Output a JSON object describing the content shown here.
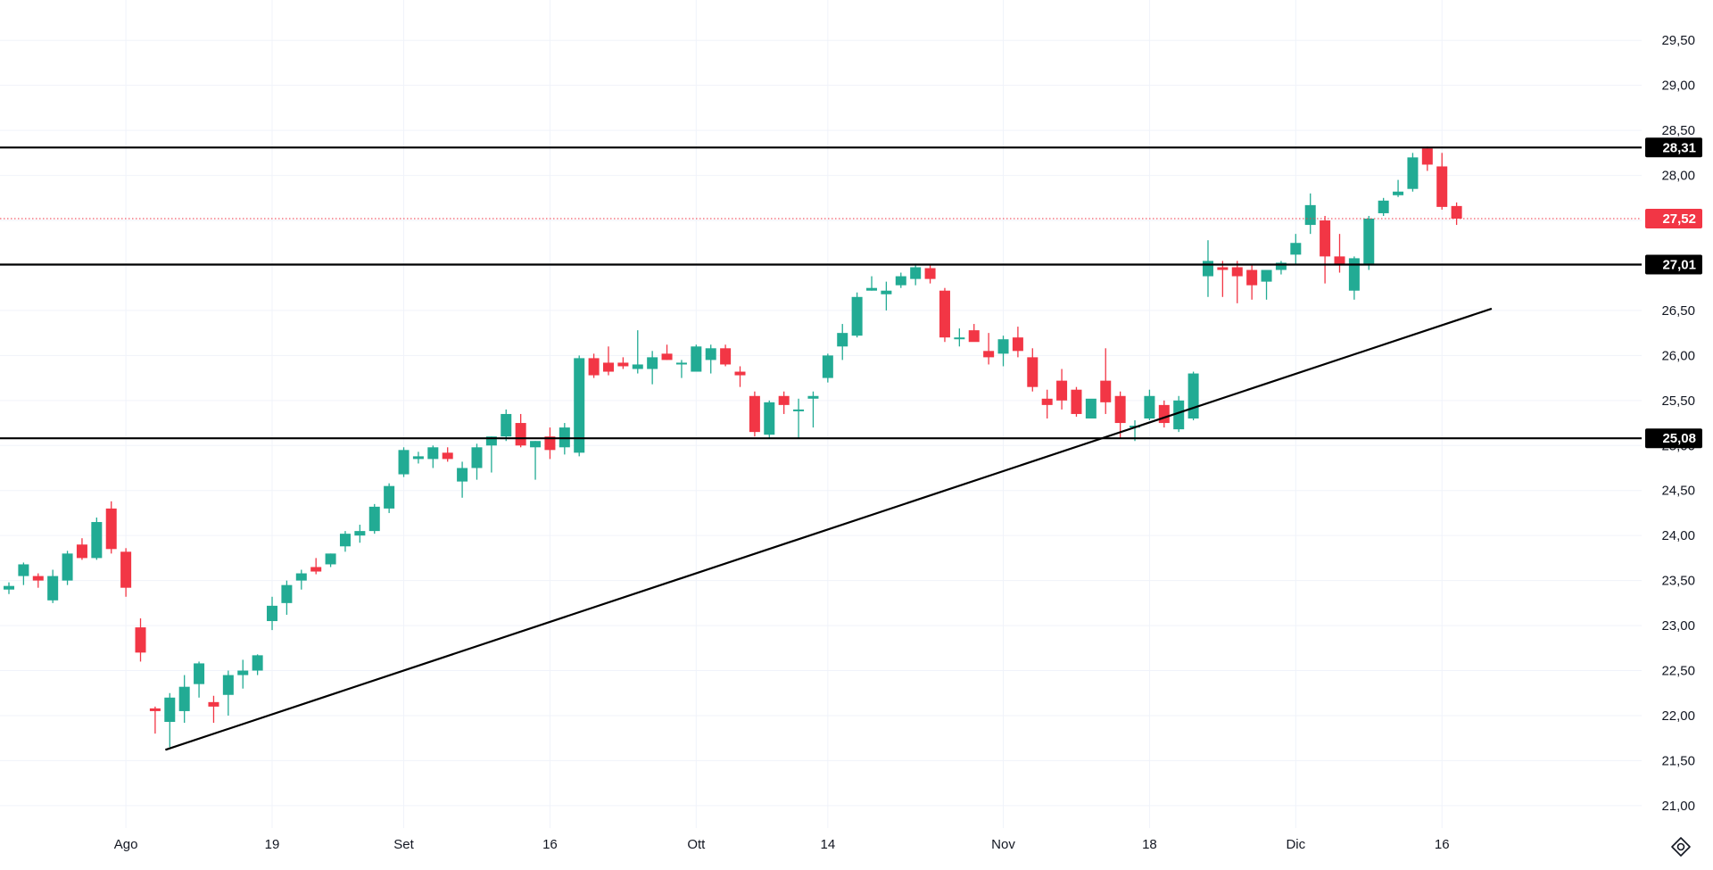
{
  "chart_data": {
    "type": "candlestick",
    "colors": {
      "up": "#22ab94",
      "down": "#f23645",
      "grid": "#f0f3fa",
      "level_line": "#000000",
      "current_price": "#f23645"
    },
    "ylim": [
      20.85,
      29.75
    ],
    "y_ticks": [
      "21,00",
      "21,50",
      "22,00",
      "22,50",
      "23,00",
      "23,50",
      "24,00",
      "24,50",
      "25,00",
      "25,50",
      "26,00",
      "26,50",
      "27,00",
      "27,50",
      "28,00",
      "28,50",
      "29,00",
      "29,50"
    ],
    "x_ticks": [
      {
        "label": "Ago",
        "index": 8
      },
      {
        "label": "19",
        "index": 18
      },
      {
        "label": "Set",
        "index": 27
      },
      {
        "label": "16",
        "index": 37
      },
      {
        "label": "Ott",
        "index": 47
      },
      {
        "label": "14",
        "index": 56
      },
      {
        "label": "Nov",
        "index": 68
      },
      {
        "label": "18",
        "index": 78
      },
      {
        "label": "Dic",
        "index": 88
      },
      {
        "label": "16",
        "index": 98
      }
    ],
    "horizontal_levels": [
      {
        "label": "28,31",
        "value": 28.31
      },
      {
        "label": "27,01",
        "value": 27.01
      },
      {
        "label": "25,08",
        "value": 25.08
      }
    ],
    "current_price": {
      "label": "27,52",
      "value": 27.52
    },
    "trendline": [
      {
        "index": 10.7,
        "value": 21.62
      },
      {
        "index": 101.4,
        "value": 26.52
      }
    ],
    "candles": [
      [
        23.4,
        23.48,
        23.35,
        23.44
      ],
      [
        23.55,
        23.7,
        23.45,
        23.68
      ],
      [
        23.55,
        23.58,
        23.42,
        23.5
      ],
      [
        23.28,
        23.62,
        23.25,
        23.55
      ],
      [
        23.5,
        23.83,
        23.45,
        23.8
      ],
      [
        23.9,
        23.97,
        23.73,
        23.75
      ],
      [
        23.75,
        24.2,
        23.73,
        24.15
      ],
      [
        24.3,
        24.38,
        23.8,
        23.85
      ],
      [
        23.82,
        23.86,
        23.32,
        23.42
      ],
      [
        22.98,
        23.08,
        22.6,
        22.7
      ],
      [
        22.08,
        22.1,
        21.8,
        22.05
      ],
      [
        21.93,
        22.25,
        21.65,
        22.2
      ],
      [
        22.05,
        22.45,
        21.92,
        22.32
      ],
      [
        22.35,
        22.6,
        22.2,
        22.58
      ],
      [
        22.15,
        22.22,
        21.92,
        22.1
      ],
      [
        22.23,
        22.5,
        22.0,
        22.45
      ],
      [
        22.45,
        22.62,
        22.3,
        22.5
      ],
      [
        22.5,
        22.68,
        22.45,
        22.67
      ],
      [
        23.05,
        23.32,
        22.95,
        23.22
      ],
      [
        23.25,
        23.5,
        23.12,
        23.45
      ],
      [
        23.5,
        23.62,
        23.4,
        23.58
      ],
      [
        23.65,
        23.75,
        23.57,
        23.6
      ],
      [
        23.68,
        23.8,
        23.65,
        23.8
      ],
      [
        23.88,
        24.05,
        23.82,
        24.02
      ],
      [
        24.0,
        24.12,
        23.92,
        24.05
      ],
      [
        24.05,
        24.35,
        24.02,
        24.32
      ],
      [
        24.3,
        24.58,
        24.25,
        24.55
      ],
      [
        24.68,
        24.98,
        24.65,
        24.95
      ],
      [
        24.85,
        24.93,
        24.8,
        24.88
      ],
      [
        24.85,
        25.0,
        24.75,
        24.98
      ],
      [
        24.92,
        24.98,
        24.82,
        24.85
      ],
      [
        24.6,
        24.82,
        24.42,
        24.75
      ],
      [
        24.75,
        25.02,
        24.62,
        24.98
      ],
      [
        25.0,
        25.1,
        24.7,
        25.1
      ],
      [
        25.1,
        25.4,
        25.05,
        25.35
      ],
      [
        25.25,
        25.35,
        24.98,
        25.0
      ],
      [
        24.98,
        25.05,
        24.62,
        25.05
      ],
      [
        25.1,
        25.2,
        24.85,
        24.95
      ],
      [
        24.98,
        25.25,
        24.9,
        25.2
      ],
      [
        24.92,
        26.0,
        24.88,
        25.97
      ],
      [
        25.97,
        26.02,
        25.75,
        25.78
      ],
      [
        25.92,
        26.1,
        25.78,
        25.82
      ],
      [
        25.92,
        25.98,
        25.85,
        25.88
      ],
      [
        25.85,
        26.28,
        25.8,
        25.9
      ],
      [
        25.85,
        26.05,
        25.68,
        25.98
      ],
      [
        26.02,
        26.12,
        25.95,
        25.95
      ],
      [
        25.9,
        25.95,
        25.75,
        25.92
      ],
      [
        25.82,
        26.12,
        25.85,
        26.1
      ],
      [
        25.95,
        26.12,
        25.8,
        26.08
      ],
      [
        26.08,
        26.12,
        25.88,
        25.9
      ],
      [
        25.82,
        25.88,
        25.65,
        25.78
      ],
      [
        25.55,
        25.6,
        25.1,
        25.15
      ],
      [
        25.12,
        25.5,
        25.08,
        25.48
      ],
      [
        25.55,
        25.6,
        25.35,
        25.45
      ],
      [
        25.38,
        25.52,
        25.08,
        25.4
      ],
      [
        25.52,
        25.6,
        25.2,
        25.55
      ],
      [
        25.75,
        26.02,
        25.7,
        26.0
      ],
      [
        26.1,
        26.35,
        25.95,
        26.25
      ],
      [
        26.22,
        26.7,
        26.2,
        26.65
      ],
      [
        26.72,
        26.88,
        26.72,
        26.75
      ],
      [
        26.68,
        26.82,
        26.5,
        26.72
      ],
      [
        26.78,
        26.92,
        26.75,
        26.88
      ],
      [
        26.85,
        27.02,
        26.78,
        26.98
      ],
      [
        26.97,
        27.0,
        26.8,
        26.85
      ],
      [
        26.72,
        26.75,
        26.15,
        26.2
      ],
      [
        26.18,
        26.3,
        26.1,
        26.2
      ],
      [
        26.28,
        26.35,
        26.18,
        26.15
      ],
      [
        26.05,
        26.25,
        25.9,
        25.98
      ],
      [
        26.02,
        26.22,
        25.88,
        26.18
      ],
      [
        26.2,
        26.32,
        25.98,
        26.05
      ],
      [
        25.98,
        26.08,
        25.6,
        25.65
      ],
      [
        25.52,
        25.62,
        25.3,
        25.45
      ],
      [
        25.72,
        25.85,
        25.4,
        25.5
      ],
      [
        25.62,
        25.65,
        25.32,
        25.35
      ],
      [
        25.3,
        25.48,
        25.32,
        25.52
      ],
      [
        25.72,
        26.08,
        25.35,
        25.48
      ],
      [
        25.55,
        25.6,
        25.08,
        25.25
      ],
      [
        25.2,
        25.28,
        25.05,
        25.22
      ],
      [
        25.3,
        25.62,
        25.28,
        25.55
      ],
      [
        25.45,
        25.5,
        25.2,
        25.25
      ],
      [
        25.18,
        25.55,
        25.15,
        25.5
      ],
      [
        25.3,
        25.82,
        25.28,
        25.8
      ],
      [
        26.88,
        27.28,
        26.65,
        27.05
      ],
      [
        26.98,
        27.05,
        26.65,
        26.95
      ],
      [
        26.98,
        27.05,
        26.58,
        26.88
      ],
      [
        26.95,
        27.0,
        26.62,
        26.78
      ],
      [
        26.82,
        26.95,
        26.62,
        26.95
      ],
      [
        26.95,
        27.05,
        26.9,
        27.03
      ],
      [
        27.12,
        27.35,
        27.02,
        27.25
      ],
      [
        27.45,
        27.8,
        27.35,
        27.67
      ],
      [
        27.5,
        27.55,
        26.8,
        27.1
      ],
      [
        27.1,
        27.35,
        26.92,
        27.0
      ],
      [
        26.72,
        27.1,
        26.62,
        27.08
      ],
      [
        27.02,
        27.55,
        26.95,
        27.52
      ],
      [
        27.58,
        27.75,
        27.55,
        27.72
      ],
      [
        27.78,
        27.95,
        27.76,
        27.82
      ],
      [
        27.85,
        28.25,
        27.82,
        28.2
      ],
      [
        28.3,
        28.32,
        28.05,
        28.12
      ],
      [
        28.1,
        28.25,
        27.62,
        27.65
      ],
      [
        27.66,
        27.7,
        27.45,
        27.52
      ]
    ]
  },
  "ui": {
    "settings_icon": "gear-icon"
  }
}
